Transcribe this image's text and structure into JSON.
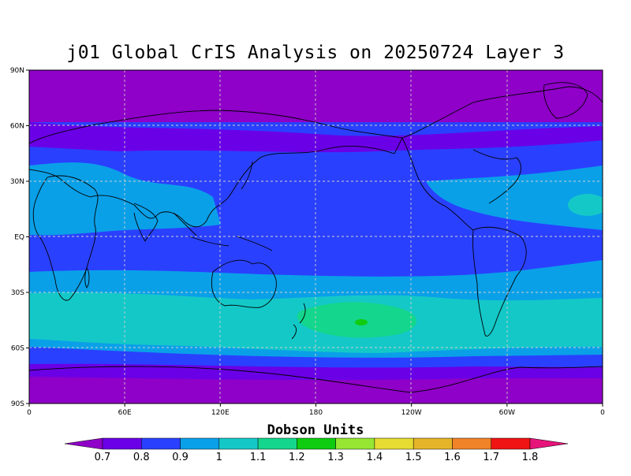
{
  "title": "j01 Global CrIS Analysis on 20250724 Layer 3",
  "colorbar_title": "Dobson Units",
  "lat_ticks": [
    "90N",
    "60N",
    "30N",
    "EQ",
    "30S",
    "60S",
    "90S"
  ],
  "lon_ticks": [
    "0",
    "60E",
    "120E",
    "180",
    "120W",
    "60W",
    "0"
  ],
  "colorbar": {
    "labels": [
      "0.7",
      "0.8",
      "0.9",
      "1",
      "1.1",
      "1.2",
      "1.3",
      "1.4",
      "1.5",
      "1.6",
      "1.7",
      "1.8"
    ],
    "colors": [
      "#8f00c8",
      "#6a00e6",
      "#2a40ff",
      "#0aa0e8",
      "#14c8c8",
      "#14d68c",
      "#10cc10",
      "#96e632",
      "#e6dc32",
      "#e6b428",
      "#f08228",
      "#f01414",
      "#e6147a"
    ]
  },
  "chart_data": {
    "type": "heatmap",
    "title": "j01 Global CrIS Analysis on 20250724 Layer 3",
    "units": "Dobson Units",
    "xlim": [
      0,
      360
    ],
    "ylim": [
      -90,
      90
    ],
    "levels": [
      0.7,
      0.8,
      0.9,
      1.0,
      1.1,
      1.2,
      1.3,
      1.4,
      1.5,
      1.6,
      1.7,
      1.8
    ],
    "zonal_profile": [
      {
        "lat": 90,
        "value": 0.7
      },
      {
        "lat": 60,
        "value": 0.75
      },
      {
        "lat": 45,
        "value": 0.85
      },
      {
        "lat": 30,
        "value": 0.95
      },
      {
        "lat": 0,
        "value": 0.85
      },
      {
        "lat": -25,
        "value": 0.95
      },
      {
        "lat": -45,
        "value": 1.1
      },
      {
        "lat": -55,
        "value": 1.0
      },
      {
        "lat": -65,
        "value": 0.85
      },
      {
        "lat": -75,
        "value": 0.75
      },
      {
        "lat": -90,
        "value": 0.7
      }
    ],
    "features": [
      {
        "name": "max",
        "lon": 200,
        "lat": -46,
        "value": 1.2
      }
    ]
  }
}
